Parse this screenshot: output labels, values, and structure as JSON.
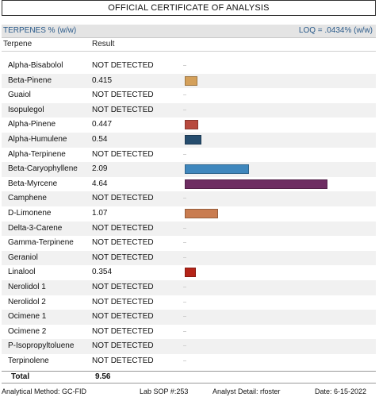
{
  "header": {
    "title": "OFFICIAL CERTIFICATE OF ANALYSIS",
    "section_label": "TERPENES % (w/w)",
    "loq": "LOQ = .0434% (w/w)"
  },
  "table": {
    "columns": [
      "Terpene",
      "Result"
    ],
    "rows": [
      {
        "name": "Alpha-Bisabolol",
        "result": "NOT DETECTED"
      },
      {
        "name": "Beta-Pinene",
        "result": "0.415"
      },
      {
        "name": "Guaiol",
        "result": "NOT DETECTED"
      },
      {
        "name": "Isopulegol",
        "result": "NOT DETECTED"
      },
      {
        "name": "Alpha-Pinene",
        "result": "0.447"
      },
      {
        "name": "Alpha-Humulene",
        "result": "0.54"
      },
      {
        "name": "Alpha-Terpinene",
        "result": "NOT DETECTED"
      },
      {
        "name": "Beta-Caryophyllene",
        "result": "2.09"
      },
      {
        "name": "Beta-Myrcene",
        "result": "4.64"
      },
      {
        "name": "Camphene",
        "result": "NOT DETECTED"
      },
      {
        "name": "D-Limonene",
        "result": "1.07"
      },
      {
        "name": "Delta-3-Carene",
        "result": "NOT DETECTED"
      },
      {
        "name": "Gamma-Terpinene",
        "result": "NOT DETECTED"
      },
      {
        "name": "Geraniol",
        "result": "NOT DETECTED"
      },
      {
        "name": "Linalool",
        "result": "0.354"
      },
      {
        "name": "Nerolidol 1",
        "result": "NOT DETECTED"
      },
      {
        "name": "Nerolidol 2",
        "result": "NOT DETECTED"
      },
      {
        "name": "Ocimene 1",
        "result": "NOT DETECTED"
      },
      {
        "name": "Ocimene 2",
        "result": "NOT DETECTED"
      },
      {
        "name": "P-Isopropyltoluene",
        "result": "NOT DETECTED"
      },
      {
        "name": "Terpinolene",
        "result": "NOT DETECTED"
      }
    ],
    "total_label": "Total",
    "total_value": "9.56"
  },
  "chart_data": {
    "type": "bar",
    "orientation": "horizontal",
    "categories": [
      "Alpha-Bisabolol",
      "Beta-Pinene",
      "Guaiol",
      "Isopulegol",
      "Alpha-Pinene",
      "Alpha-Humulene",
      "Alpha-Terpinene",
      "Beta-Caryophyllene",
      "Beta-Myrcene",
      "Camphene",
      "D-Limonene",
      "Delta-3-Carene",
      "Gamma-Terpinene",
      "Geraniol",
      "Linalool",
      "Nerolidol 1",
      "Nerolidol 2",
      "Ocimene 1",
      "Ocimene 2",
      "P-Isopropyltoluene",
      "Terpinolene"
    ],
    "values": [
      0,
      0.415,
      0,
      0,
      0.447,
      0.54,
      0,
      2.09,
      4.64,
      0,
      1.07,
      0,
      0,
      0,
      0.354,
      0,
      0,
      0,
      0,
      0,
      0
    ],
    "colors": [
      "",
      "#d4a05a",
      "",
      "",
      "#b84a3e",
      "#264d6e",
      "",
      "#3f87bd",
      "#6e2d62",
      "",
      "#c97c50",
      "",
      "",
      "",
      "#b52418",
      "",
      "",
      "",
      "",
      "",
      ""
    ],
    "xlim": [
      0,
      4.64
    ],
    "grid": false
  },
  "footer": {
    "method": "Analytical Method: GC-FID",
    "sop": "Lab SOP #:253",
    "analyst": "Analyst Detail: rfoster",
    "date": "Date: 6-15-2022"
  }
}
